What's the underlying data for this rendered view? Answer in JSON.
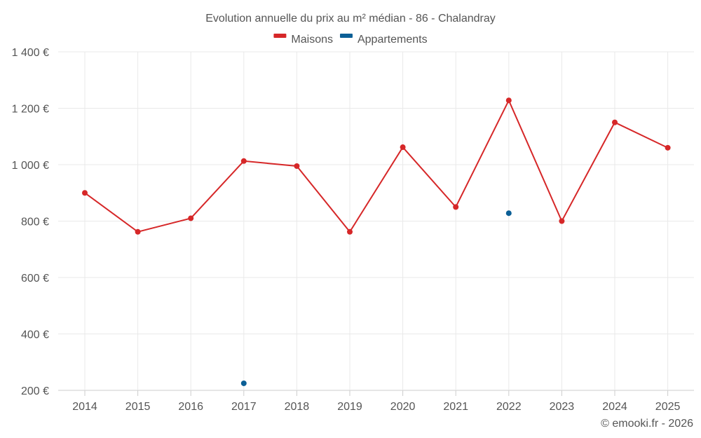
{
  "chart_data": {
    "type": "line",
    "title": "Evolution annuelle du prix au m² médian - 86 - Chalandray",
    "categories": [
      "2014",
      "2015",
      "2016",
      "2017",
      "2018",
      "2019",
      "2020",
      "2021",
      "2022",
      "2023",
      "2024",
      "2025"
    ],
    "series": [
      {
        "name": "Maisons",
        "color": "#d62728",
        "values": [
          900,
          762,
          810,
          1013,
          995,
          762,
          1062,
          850,
          1228,
          800,
          1150,
          1060
        ]
      },
      {
        "name": "Appartements",
        "color": "#0b5f96",
        "values": [
          null,
          null,
          null,
          225,
          null,
          null,
          null,
          null,
          828,
          null,
          null,
          null
        ]
      }
    ],
    "ylim": [
      200,
      1400
    ],
    "yticks": [
      200,
      400,
      600,
      800,
      1000,
      1200,
      1400
    ],
    "ytick_labels": [
      "200 €",
      "400 €",
      "600 €",
      "800 €",
      "1 000 €",
      "1 200 €",
      "1 400 €"
    ],
    "grid": true,
    "legend_position": "top-center",
    "xlabel": "",
    "ylabel": ""
  },
  "credit": "© emooki.fr - 2026"
}
